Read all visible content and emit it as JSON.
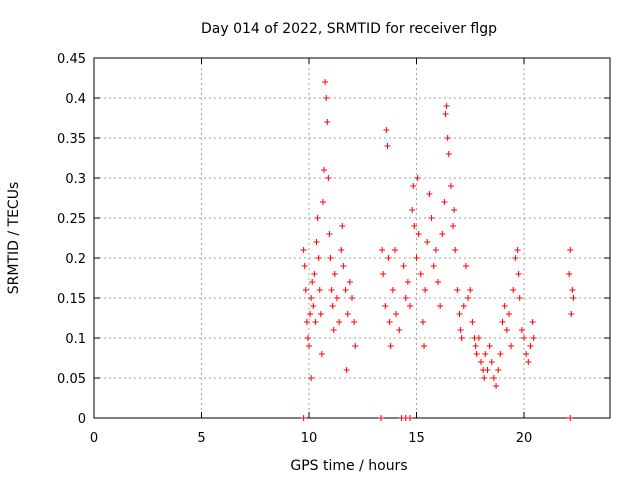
{
  "chart_data": {
    "type": "scatter",
    "title": "Day 014 of 2022, SRMTID for receiver flgp",
    "xlabel": "GPS time / hours",
    "ylabel": "SRMTID / TECUs",
    "xlim": [
      0,
      24
    ],
    "ylim": [
      0,
      0.45
    ],
    "x_ticks": [
      "0",
      "5",
      "10",
      "15",
      "20"
    ],
    "x_tick_values": [
      0,
      5,
      10,
      15,
      20
    ],
    "y_ticks": [
      "0",
      "0.05",
      "0.1",
      "0.15",
      "0.2",
      "0.25",
      "0.3",
      "0.35",
      "0.4",
      "0.45"
    ],
    "y_tick_values": [
      0,
      0.05,
      0.1,
      0.15,
      0.2,
      0.25,
      0.3,
      0.35,
      0.4,
      0.45
    ],
    "grid": true,
    "marker": "+",
    "series": [
      {
        "color": "#ff0000",
        "points": [
          [
            9.75,
            0.21
          ],
          [
            9.8,
            0.19
          ],
          [
            9.85,
            0.16
          ],
          [
            9.9,
            0.12
          ],
          [
            9.95,
            0.1
          ],
          [
            10.0,
            0.09
          ],
          [
            10.05,
            0.13
          ],
          [
            10.1,
            0.05
          ],
          [
            10.1,
            0.15
          ],
          [
            10.15,
            0.17
          ],
          [
            10.2,
            0.14
          ],
          [
            10.25,
            0.18
          ],
          [
            10.3,
            0.12
          ],
          [
            10.35,
            0.22
          ],
          [
            10.4,
            0.25
          ],
          [
            10.45,
            0.2
          ],
          [
            10.5,
            0.16
          ],
          [
            10.55,
            0.13
          ],
          [
            10.6,
            0.08
          ],
          [
            10.65,
            0.27
          ],
          [
            10.7,
            0.31
          ],
          [
            10.75,
            0.42
          ],
          [
            10.8,
            0.4
          ],
          [
            10.85,
            0.37
          ],
          [
            10.9,
            0.3
          ],
          [
            10.95,
            0.23
          ],
          [
            11.0,
            0.2
          ],
          [
            11.05,
            0.16
          ],
          [
            11.1,
            0.14
          ],
          [
            11.15,
            0.11
          ],
          [
            11.2,
            0.18
          ],
          [
            11.3,
            0.15
          ],
          [
            11.4,
            0.12
          ],
          [
            11.5,
            0.21
          ],
          [
            11.55,
            0.24
          ],
          [
            11.6,
            0.19
          ],
          [
            11.7,
            0.16
          ],
          [
            11.75,
            0.06
          ],
          [
            11.8,
            0.13
          ],
          [
            11.9,
            0.17
          ],
          [
            12.0,
            0.15
          ],
          [
            12.1,
            0.12
          ],
          [
            12.15,
            0.09
          ],
          [
            13.4,
            0.21
          ],
          [
            13.45,
            0.18
          ],
          [
            13.55,
            0.14
          ],
          [
            13.6,
            0.36
          ],
          [
            13.65,
            0.34
          ],
          [
            13.7,
            0.2
          ],
          [
            13.75,
            0.12
          ],
          [
            13.8,
            0.09
          ],
          [
            13.9,
            0.16
          ],
          [
            14.0,
            0.21
          ],
          [
            14.05,
            0.13
          ],
          [
            14.2,
            0.11
          ],
          [
            14.4,
            0.19
          ],
          [
            14.5,
            0.15
          ],
          [
            14.6,
            0.17
          ],
          [
            14.7,
            0.14
          ],
          [
            14.8,
            0.26
          ],
          [
            14.85,
            0.29
          ],
          [
            14.9,
            0.24
          ],
          [
            15.0,
            0.2
          ],
          [
            15.05,
            0.3
          ],
          [
            15.1,
            0.23
          ],
          [
            15.2,
            0.18
          ],
          [
            15.3,
            0.12
          ],
          [
            15.35,
            0.09
          ],
          [
            15.4,
            0.16
          ],
          [
            15.5,
            0.22
          ],
          [
            15.6,
            0.28
          ],
          [
            15.7,
            0.25
          ],
          [
            15.8,
            0.19
          ],
          [
            15.9,
            0.21
          ],
          [
            16.0,
            0.17
          ],
          [
            16.1,
            0.14
          ],
          [
            16.2,
            0.23
          ],
          [
            16.3,
            0.27
          ],
          [
            16.35,
            0.38
          ],
          [
            16.4,
            0.39
          ],
          [
            16.45,
            0.35
          ],
          [
            16.5,
            0.33
          ],
          [
            16.6,
            0.29
          ],
          [
            16.7,
            0.24
          ],
          [
            16.75,
            0.26
          ],
          [
            16.8,
            0.21
          ],
          [
            16.9,
            0.16
          ],
          [
            17.0,
            0.13
          ],
          [
            17.05,
            0.11
          ],
          [
            17.1,
            0.1
          ],
          [
            17.2,
            0.14
          ],
          [
            17.3,
            0.19
          ],
          [
            17.4,
            0.15
          ],
          [
            17.5,
            0.16
          ],
          [
            17.6,
            0.12
          ],
          [
            17.7,
            0.1
          ],
          [
            17.75,
            0.09
          ],
          [
            17.8,
            0.08
          ],
          [
            17.9,
            0.1
          ],
          [
            18.0,
            0.07
          ],
          [
            18.1,
            0.06
          ],
          [
            18.15,
            0.05
          ],
          [
            18.2,
            0.08
          ],
          [
            18.3,
            0.06
          ],
          [
            18.4,
            0.09
          ],
          [
            18.5,
            0.07
          ],
          [
            18.6,
            0.05
          ],
          [
            18.7,
            0.04
          ],
          [
            18.8,
            0.06
          ],
          [
            18.9,
            0.08
          ],
          [
            19.0,
            0.12
          ],
          [
            19.1,
            0.14
          ],
          [
            19.2,
            0.11
          ],
          [
            19.3,
            0.13
          ],
          [
            19.4,
            0.09
          ],
          [
            19.5,
            0.16
          ],
          [
            19.6,
            0.2
          ],
          [
            19.7,
            0.21
          ],
          [
            19.75,
            0.18
          ],
          [
            19.8,
            0.15
          ],
          [
            19.9,
            0.11
          ],
          [
            20.0,
            0.1
          ],
          [
            20.1,
            0.08
          ],
          [
            20.2,
            0.07
          ],
          [
            20.3,
            0.09
          ],
          [
            20.4,
            0.12
          ],
          [
            20.45,
            0.1
          ],
          [
            22.1,
            0.18
          ],
          [
            22.15,
            0.21
          ],
          [
            22.2,
            0.13
          ],
          [
            22.25,
            0.16
          ],
          [
            22.3,
            0.15
          ],
          [
            9.75,
            0.0
          ],
          [
            13.35,
            0.0
          ],
          [
            14.3,
            0.0
          ],
          [
            14.5,
            0.0
          ],
          [
            14.7,
            0.0
          ],
          [
            22.15,
            0.0
          ]
        ]
      }
    ]
  }
}
